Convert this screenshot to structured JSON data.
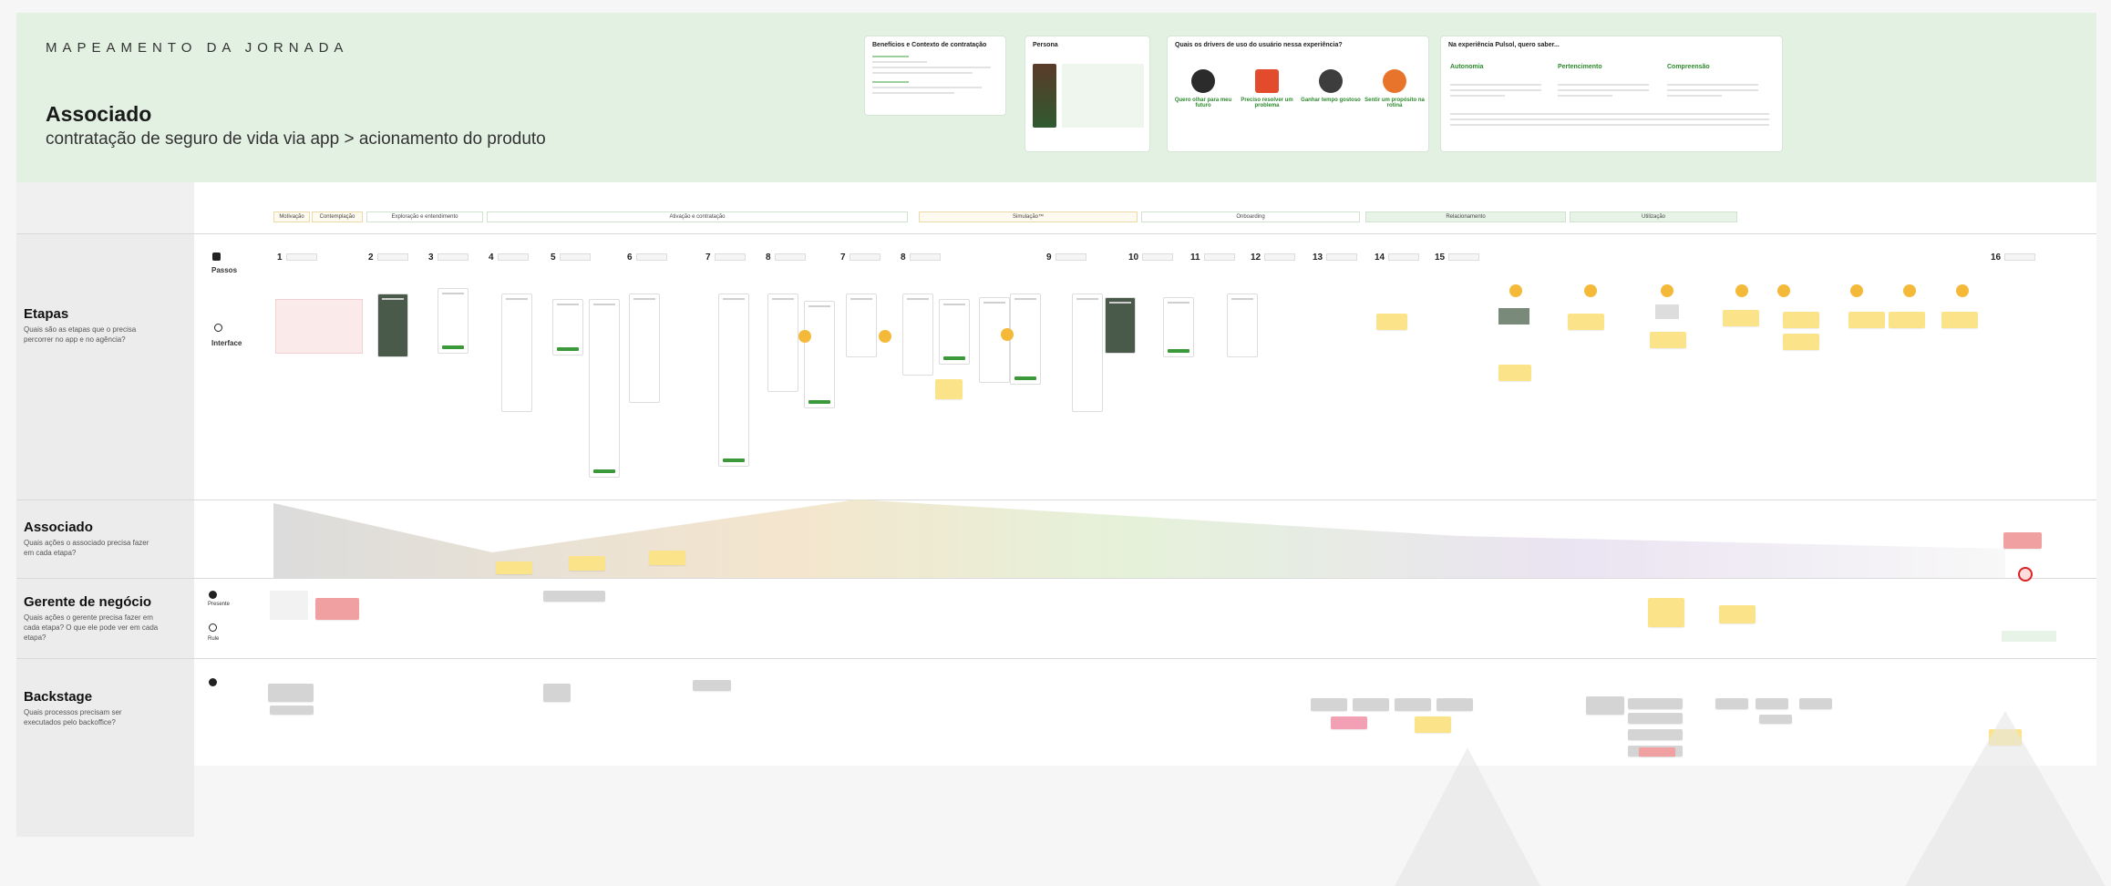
{
  "header": {
    "kicker": "MAPEAMENTO DA JORNADA",
    "title": "Associado",
    "subtitle": "contratação de seguro de vida via app > acionamento do produto",
    "cards": {
      "contratacao_title": "Benefícios e Contexto de contratação",
      "persona_title": "Persona",
      "drivers_title": "Quais os drivers de uso do usuário nessa experiência?",
      "skills_title": "Na experiência Pulsol, quero saber..."
    },
    "drivers": [
      {
        "label": "Quero olhar para meu futuro",
        "icon": "eye-icon",
        "color": "#2b2b2b"
      },
      {
        "label": "Preciso resolver um problema",
        "icon": "warning-icon",
        "color": "#e24b2b"
      },
      {
        "label": "Ganhar tempo gostoso",
        "icon": "clock-icon",
        "color": "#3d3d3d"
      },
      {
        "label": "Sentir um propósito na rotina",
        "icon": "heart-icon",
        "color": "#e8742b"
      }
    ],
    "skills": [
      "Autonomia",
      "Pertencimento",
      "Compreensão"
    ]
  },
  "lanes": {
    "etapas": {
      "title": "Etapas",
      "question": "Quais são as etapas que o precisa percorrer no app e no agência?",
      "passos": "Passos",
      "interface": "Interface"
    },
    "associado": {
      "title": "Associado",
      "question": "Quais ações o associado precisa fazer em cada etapa?"
    },
    "gerente": {
      "title": "Gerente de negócio",
      "question": "Quais ações o gerente precisa fazer em cada etapa? O que ele pode ver em cada etapa?",
      "role1": "Presente",
      "role2": "Rule"
    },
    "backstage": {
      "title": "Backstage",
      "question": "Quais processos precisam ser executados pelo backoffice?"
    }
  },
  "phases": [
    {
      "label": "Motivação"
    },
    {
      "label": "Contemplação"
    },
    {
      "label": "Exploração e entendimento"
    },
    {
      "label": "Ativação e contratação"
    },
    {
      "label": "Simulação™"
    },
    {
      "label": "Onboarding"
    },
    {
      "label": "Relacionamento"
    },
    {
      "label": "Utilização"
    }
  ],
  "steps": [
    "1",
    "2",
    "3",
    "4",
    "5",
    "6",
    "7",
    "8",
    "7",
    "8",
    "9",
    "10",
    "11",
    "12",
    "13",
    "14",
    "15",
    "16"
  ],
  "colors": {
    "accent": "#3a9a3a",
    "header_bg": "#e3f1e3",
    "sticky": "#fbe38a"
  }
}
